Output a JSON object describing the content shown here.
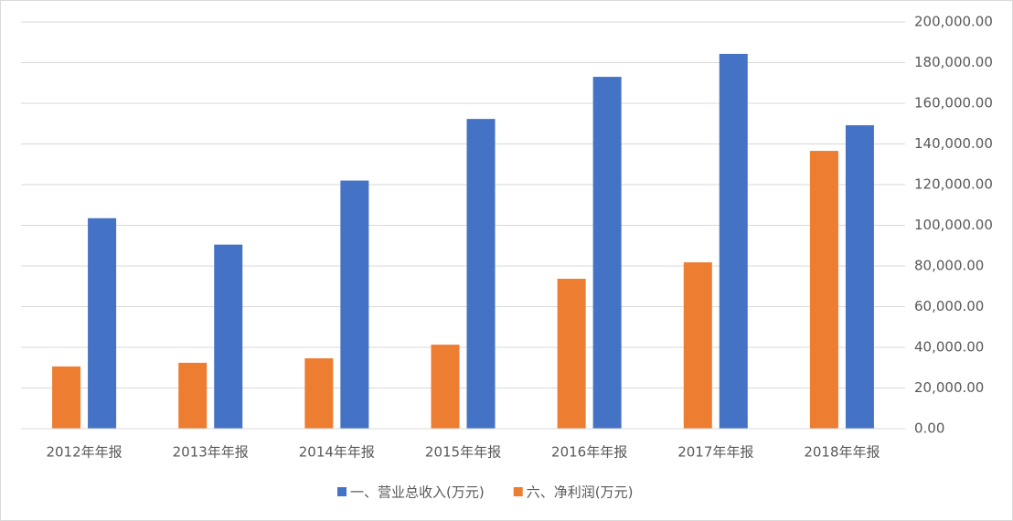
{
  "chart_data": {
    "type": "bar",
    "categories": [
      "2012年年报",
      "2013年年报",
      "2014年年报",
      "2015年年报",
      "2016年年报",
      "2017年年报",
      "2018年年报"
    ],
    "series": [
      {
        "name": "一、营业总收入(万元)",
        "color": "#4472c4",
        "values": [
          103500,
          90500,
          122000,
          152300,
          173000,
          184300,
          149200
        ]
      },
      {
        "name": "六、净利润(万元)",
        "color": "#ed7d31",
        "values": [
          30600,
          32400,
          34600,
          41300,
          73700,
          81800,
          136600
        ]
      }
    ],
    "ylim": [
      0,
      200000
    ],
    "yticks": [
      {
        "value": 0,
        "label": "0.00"
      },
      {
        "value": 20000,
        "label": "20,000.00"
      },
      {
        "value": 40000,
        "label": "40,000.00"
      },
      {
        "value": 60000,
        "label": "60,000.00"
      },
      {
        "value": 80000,
        "label": "80,000.00"
      },
      {
        "value": 100000,
        "label": "100,000.00"
      },
      {
        "value": 120000,
        "label": "120,000.00"
      },
      {
        "value": 140000,
        "label": "140,000.00"
      },
      {
        "value": 160000,
        "label": "160,000.00"
      },
      {
        "value": 180000,
        "label": "180,000.00"
      },
      {
        "value": 200000,
        "label": "200,000.00"
      }
    ],
    "grid": true,
    "legend": "bottom"
  }
}
